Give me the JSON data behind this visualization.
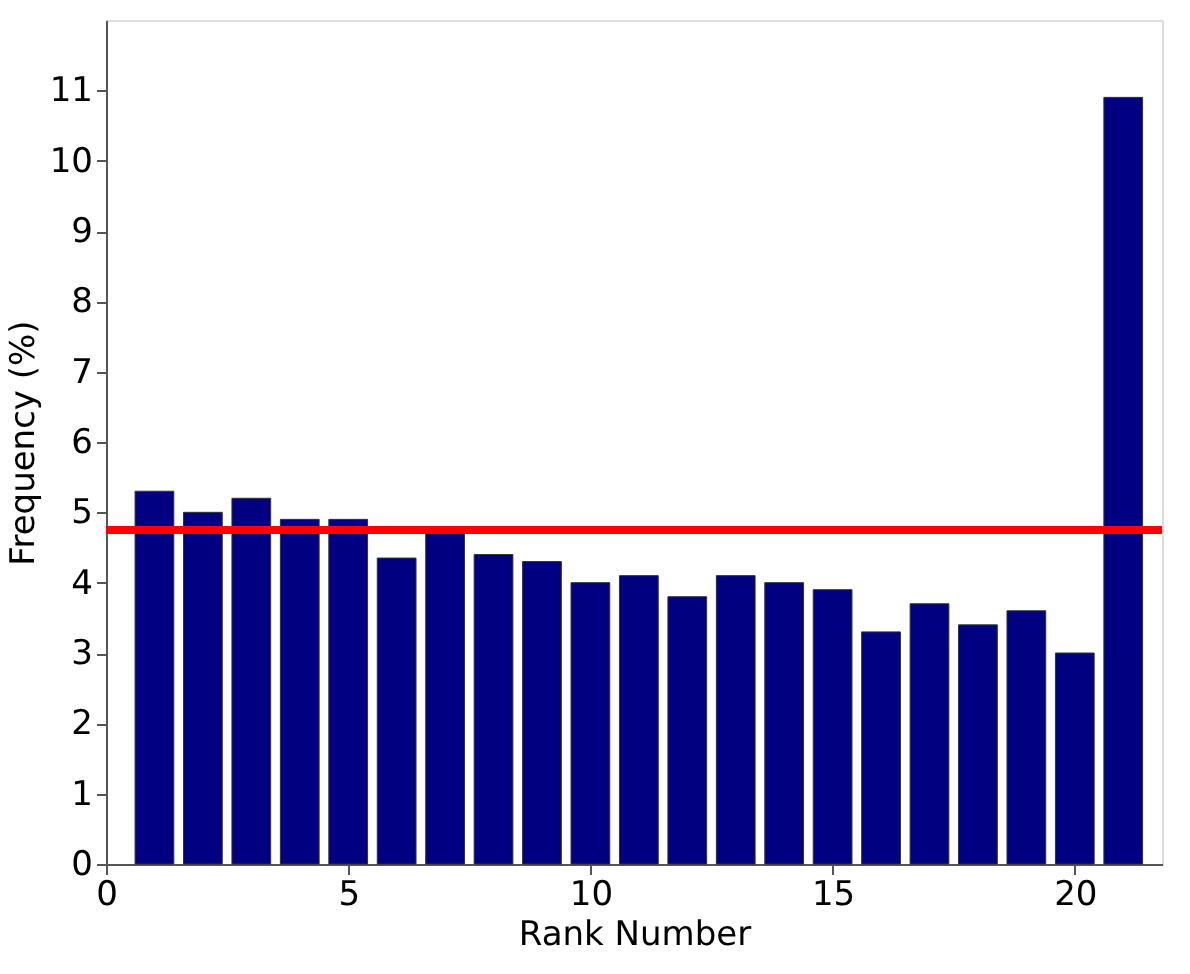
{
  "chart_data": {
    "type": "bar",
    "xlabel": "Rank Number",
    "ylabel": "Frequency (%)",
    "x": [
      1,
      2,
      3,
      4,
      5,
      6,
      7,
      8,
      9,
      10,
      11,
      12,
      13,
      14,
      15,
      16,
      17,
      18,
      19,
      20,
      21
    ],
    "values": [
      5.3,
      5.0,
      5.2,
      4.9,
      4.9,
      4.35,
      4.7,
      4.4,
      4.3,
      4.0,
      4.1,
      3.8,
      4.1,
      4.0,
      3.9,
      3.3,
      3.7,
      3.4,
      3.6,
      3.0,
      10.9
    ],
    "color": "#000080",
    "xlim": [
      0,
      21.8
    ],
    "xticks": [
      0,
      5,
      10,
      15,
      20
    ],
    "ylim": [
      0,
      12
    ],
    "yticks": [
      0,
      1,
      2,
      3,
      4,
      5,
      6,
      7,
      8,
      9,
      10,
      11
    ],
    "ref_lines": [
      {
        "axis": "y",
        "value": 4.75,
        "color": "#ff0000"
      }
    ],
    "grid": false,
    "legend": false
  }
}
